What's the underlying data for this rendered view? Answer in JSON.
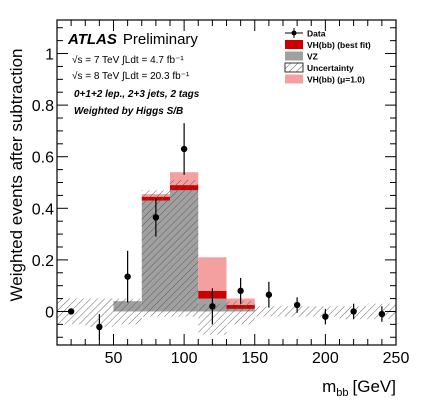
{
  "chart_data": {
    "type": "bar",
    "subtype": "stacked-histogram-with-data-points",
    "xlabel": "m",
    "xlabel_sub": "bb",
    "xlabel_unit": "[GeV]",
    "ylabel": "Weighted events after subtraction",
    "xlim": [
      10,
      250
    ],
    "ylim": [
      -0.13,
      1.13
    ],
    "x_ticks": [
      50,
      100,
      150,
      200,
      250
    ],
    "y_ticks": [
      0,
      0.2,
      0.4,
      0.6,
      0.8,
      1
    ],
    "y_tick_labels": [
      "0",
      "0.2",
      "0.4",
      "0.6",
      "0.8",
      "1"
    ],
    "grid": false,
    "legend_position": "top-right",
    "annotations": {
      "atlas": "ATLAS",
      "atlas_status": "Preliminary",
      "lumi7": "√s = 7 TeV ∫Ldt = 4.7 fb⁻¹",
      "lumi8": "√s = 8 TeV ∫Ldt = 20.3 fb⁻¹",
      "selection": "0+1+2 lep., 2+3 jets, 2 tags",
      "weighting": "Weighted by Higgs S/B"
    },
    "legend": [
      {
        "label": "Data",
        "kind": "data"
      },
      {
        "label": "VH(bb) (best fit)",
        "kind": "box",
        "color": "#cc0000"
      },
      {
        "label": "VZ",
        "kind": "box",
        "color": "#a0a0a0"
      },
      {
        "label": "Uncertainty",
        "kind": "hatch"
      },
      {
        "label": "VH(bb) (μ=1.0)",
        "kind": "box",
        "color": "#f4a0a0"
      }
    ],
    "bin_edges": [
      10,
      30,
      50,
      70,
      90,
      110,
      130,
      150,
      170,
      190,
      210,
      230,
      250
    ],
    "series": [
      {
        "name": "VZ",
        "color": "#a0a0a0",
        "values": [
          0,
          0,
          0.04,
          0.43,
          0.47,
          0.05,
          0.01,
          0,
          0,
          0,
          0,
          0
        ]
      },
      {
        "name": "VH(bb) (best fit)",
        "color": "#cc0000",
        "values": [
          0,
          0,
          0,
          0.015,
          0.02,
          0.03,
          0.015,
          0,
          0,
          0,
          0,
          0
        ]
      },
      {
        "name": "VH(bb) (μ=1.0)",
        "color": "#f4a0a0",
        "values": [
          0,
          0,
          0,
          0.01,
          0.05,
          0.13,
          0.025,
          0,
          0,
          0,
          0,
          0
        ]
      }
    ],
    "uncertainty_band": [
      {
        "lo": -0.05,
        "hi": 0.05
      },
      {
        "lo": -0.06,
        "hi": 0.05
      },
      {
        "lo": -0.05,
        "hi": 0.05
      },
      {
        "lo": -0.02,
        "hi": 0.47
      },
      {
        "lo": -0.02,
        "hi": 0.51
      },
      {
        "lo": -0.09,
        "hi": 0.03
      },
      {
        "lo": -0.05,
        "hi": 0.04
      },
      {
        "lo": -0.02,
        "hi": 0.02
      },
      {
        "lo": -0.02,
        "hi": 0.02
      },
      {
        "lo": -0.02,
        "hi": 0.02
      },
      {
        "lo": -0.03,
        "hi": 0.02
      },
      {
        "lo": -0.03,
        "hi": 0.03
      }
    ],
    "data_points": [
      {
        "x": 20,
        "y": 0.0,
        "err": 0.0
      },
      {
        "x": 40,
        "y": -0.06,
        "err": 0.05
      },
      {
        "x": 60,
        "y": 0.135,
        "err": 0.1
      },
      {
        "x": 80,
        "y": 0.365,
        "err": 0.075
      },
      {
        "x": 100,
        "y": 0.63,
        "err": 0.1
      },
      {
        "x": 120,
        "y": 0.02,
        "err": 0.07
      },
      {
        "x": 140,
        "y": 0.08,
        "err": 0.05
      },
      {
        "x": 160,
        "y": 0.065,
        "err": 0.05
      },
      {
        "x": 180,
        "y": 0.025,
        "err": 0.03
      },
      {
        "x": 200,
        "y": -0.02,
        "err": 0.03
      },
      {
        "x": 220,
        "y": 0.0,
        "err": 0.03
      },
      {
        "x": 240,
        "y": -0.01,
        "err": 0.03
      }
    ]
  }
}
